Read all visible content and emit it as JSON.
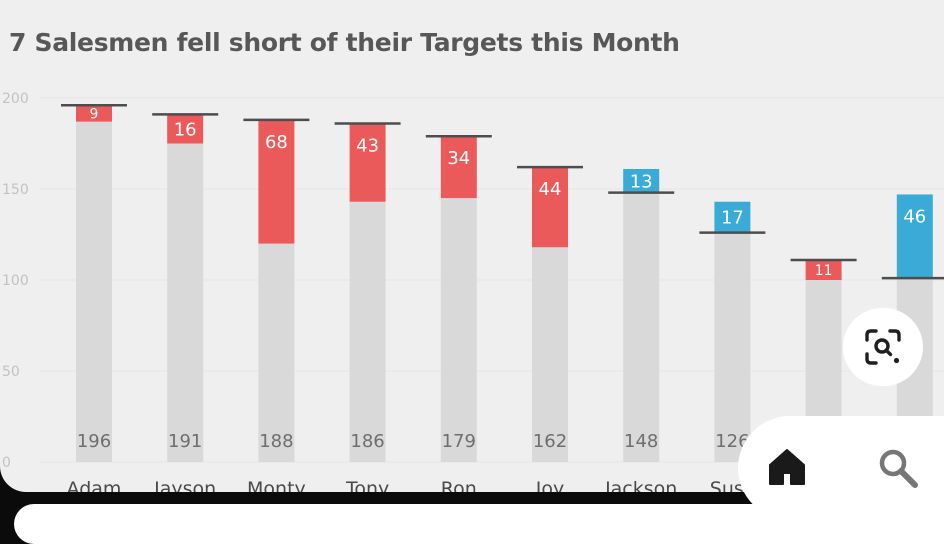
{
  "chart_data": {
    "type": "bar",
    "title": "7 Salesmen fell short of their Targets this Month",
    "categories": [
      "Adam",
      "Jayson",
      "Monty",
      "Tony",
      "Ron",
      "Joy",
      "Jackson",
      "Susy",
      "",
      ""
    ],
    "targets": [
      196,
      191,
      188,
      186,
      179,
      162,
      148,
      126,
      111,
      101
    ],
    "actuals": [
      187,
      175,
      120,
      143,
      145,
      118,
      161,
      143,
      100,
      147
    ],
    "gap_labels": [
      "9",
      "16",
      "68",
      "43",
      "34",
      "44",
      "13",
      "17",
      "11",
      "46"
    ],
    "target_labels": [
      "196",
      "191",
      "188",
      "186",
      "179",
      "162",
      "148",
      "126",
      "",
      ""
    ],
    "xlabel": "",
    "ylabel": "",
    "ylim": [
      0,
      200
    ],
    "yticks": [
      "0",
      "50",
      "100",
      "150",
      "200"
    ],
    "grid": true,
    "colors": {
      "base": "#d9d9d9",
      "shortfall": "#ea5a5a",
      "exceeded": "#3aaad7",
      "target_line": "#4d4d4d",
      "tick_text": "#c2c2c2",
      "label_text": "#6e6e6e"
    }
  },
  "overlay": {
    "lens_icon": "lens-search-icon",
    "nav_items": [
      {
        "icon": "home-icon"
      },
      {
        "icon": "search-icon"
      }
    ]
  }
}
